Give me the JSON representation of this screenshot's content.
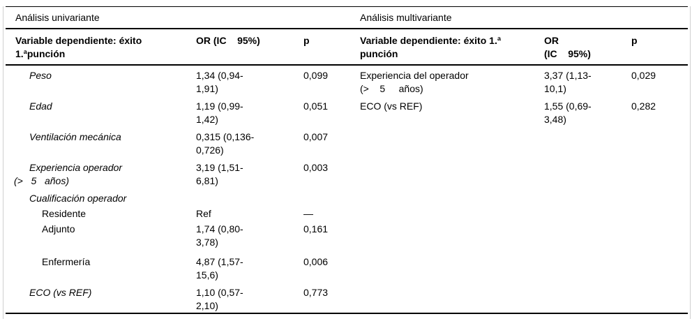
{
  "colors": {
    "rule_black": "#000000",
    "side_border_gray": "#cfcfcf",
    "background": "#ffffff",
    "text": "#000000"
  },
  "univariate": {
    "section_title": "Análisis univariante",
    "header": {
      "variable_line1": "Variable dependiente: éxito",
      "variable_line2": "1.ªpunción",
      "or_line1": "OR (IC    95%)",
      "or_line2": "",
      "p": "p"
    },
    "rows": [
      {
        "var_lines": [
          "Peso"
        ],
        "or_lines": [
          "1,34 (0,94-",
          "1,91)"
        ],
        "p": "0,099"
      },
      {
        "var_lines": [
          "Edad"
        ],
        "or_lines": [
          "1,19 (0,99-",
          "1,42)"
        ],
        "p": "0,051"
      },
      {
        "var_lines": [
          "Ventilación mecánica"
        ],
        "or_lines": [
          "0,315 (0,136-",
          "0,726)"
        ],
        "p": "0,007"
      },
      {
        "var_lines": [
          "Experiencia operador",
          "(>   5   años)"
        ],
        "or_lines": [
          "3,19 (1,51-",
          "6,81)"
        ],
        "p": "0,003"
      },
      {
        "var_lines": [
          "Cualificación operador"
        ],
        "or_lines": [],
        "p": ""
      },
      {
        "var_lines": [
          "Residente"
        ],
        "or_lines": [
          "Ref"
        ],
        "p": "—"
      },
      {
        "var_lines": [
          "Adjunto"
        ],
        "or_lines": [
          "1,74 (0,80-",
          "3,78)"
        ],
        "p": "0,161"
      },
      {
        "var_lines": [
          "Enfermería"
        ],
        "or_lines": [
          "4,87 (1,57-",
          "15,6)"
        ],
        "p": "0,006"
      },
      {
        "var_lines": [
          "ECO (vs REF)"
        ],
        "or_lines": [
          "1,10 (0,57-",
          "2,10)"
        ],
        "p": "0,773"
      }
    ]
  },
  "multivariate": {
    "section_title": "Análisis multivariante",
    "header": {
      "variable_line1": "Variable dependiente: éxito 1.ª",
      "variable_line2": "punción",
      "or_line1": "OR",
      "or_line2": "(IC    95%)",
      "p": "p"
    },
    "rows": [
      {
        "var_lines": [
          "Experiencia del operador",
          "(>    5     años)"
        ],
        "or_lines": [
          "3,37 (1,13-",
          "10,1)"
        ],
        "p": "0,029"
      },
      {
        "var_lines": [
          "ECO (vs REF)"
        ],
        "or_lines": [
          "1,55 (0,69-",
          "3,48)"
        ],
        "p": "0,282"
      }
    ]
  }
}
